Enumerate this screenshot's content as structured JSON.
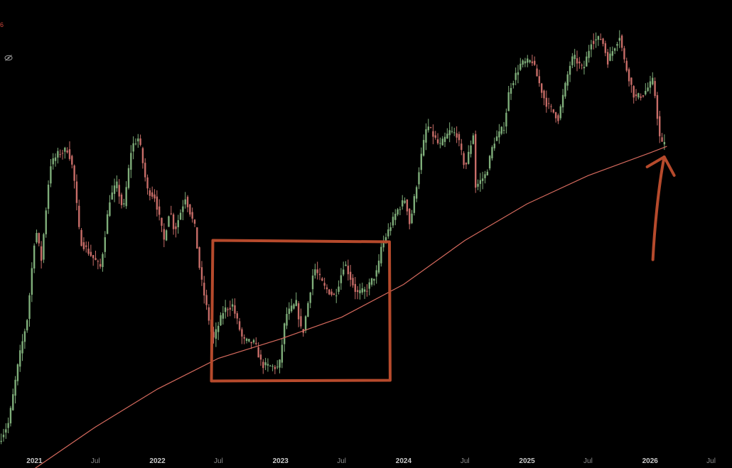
{
  "header": {
    "corner_value": "6"
  },
  "icons": {
    "visibility": "eye-slash-icon"
  },
  "colors": {
    "background": "#000000",
    "up_candle": "#7fae7a",
    "down_candle": "#c86d68",
    "moving_average": "#d66a5e",
    "annotation": "#b64a2c",
    "axis_text": "#8c8c8c"
  },
  "chart_data": {
    "type": "candlestick",
    "title": "",
    "xlabel": "",
    "ylabel": "",
    "interval": "weekly",
    "x_range": [
      "2020-09-21",
      "2026-09-01"
    ],
    "y_scale": "log",
    "grid": false,
    "x_ticks": [
      {
        "date": "2021-01-01",
        "label": "2021",
        "major": true
      },
      {
        "date": "2021-07-01",
        "label": "Jul",
        "major": false
      },
      {
        "date": "2022-01-01",
        "label": "2022",
        "major": true
      },
      {
        "date": "2022-07-01",
        "label": "Jul",
        "major": false
      },
      {
        "date": "2023-01-01",
        "label": "2023",
        "major": true
      },
      {
        "date": "2023-07-01",
        "label": "Jul",
        "major": false
      },
      {
        "date": "2024-01-01",
        "label": "2024",
        "major": true
      },
      {
        "date": "2024-07-01",
        "label": "Jul",
        "major": false
      },
      {
        "date": "2025-01-01",
        "label": "2025",
        "major": true
      },
      {
        "date": "2025-07-01",
        "label": "Jul",
        "major": false
      },
      {
        "date": "2026-01-01",
        "label": "2026",
        "major": true
      },
      {
        "date": "2026-07-01",
        "label": "Jul",
        "major": false
      }
    ],
    "price_path": [
      [
        "2020-09-21",
        10500
      ],
      [
        "2020-10-20",
        11800
      ],
      [
        "2020-11-20",
        17500
      ],
      [
        "2020-12-15",
        22500
      ],
      [
        "2021-01-08",
        39000
      ],
      [
        "2021-01-25",
        32000
      ],
      [
        "2021-02-20",
        57000
      ],
      [
        "2021-03-15",
        61000
      ],
      [
        "2021-04-14",
        63000
      ],
      [
        "2021-04-30",
        55000
      ],
      [
        "2021-05-20",
        36000
      ],
      [
        "2021-06-20",
        33000
      ],
      [
        "2021-07-20",
        30500
      ],
      [
        "2021-08-15",
        46000
      ],
      [
        "2021-09-05",
        51000
      ],
      [
        "2021-09-25",
        43000
      ],
      [
        "2021-10-20",
        64000
      ],
      [
        "2021-11-10",
        67500
      ],
      [
        "2021-12-05",
        49000
      ],
      [
        "2021-12-28",
        47000
      ],
      [
        "2022-01-24",
        36000
      ],
      [
        "2022-02-10",
        44000
      ],
      [
        "2022-02-24",
        38000
      ],
      [
        "2022-03-28",
        47000
      ],
      [
        "2022-04-25",
        39000
      ],
      [
        "2022-05-12",
        29000
      ],
      [
        "2022-06-18",
        19500
      ],
      [
        "2022-07-20",
        23500
      ],
      [
        "2022-08-15",
        24200
      ],
      [
        "2022-09-15",
        19500
      ],
      [
        "2022-10-20",
        19200
      ],
      [
        "2022-11-10",
        16800
      ],
      [
        "2022-12-31",
        16500
      ],
      [
        "2023-01-20",
        22800
      ],
      [
        "2023-02-20",
        24500
      ],
      [
        "2023-03-10",
        20000
      ],
      [
        "2023-04-14",
        30500
      ],
      [
        "2023-05-15",
        27000
      ],
      [
        "2023-06-15",
        25500
      ],
      [
        "2023-07-13",
        31500
      ],
      [
        "2023-08-18",
        26000
      ],
      [
        "2023-09-15",
        26500
      ],
      [
        "2023-10-20",
        30000
      ],
      [
        "2023-10-30",
        34500
      ],
      [
        "2023-12-15",
        43000
      ],
      [
        "2024-01-10",
        46500
      ],
      [
        "2024-01-23",
        39500
      ],
      [
        "2024-02-28",
        62000
      ],
      [
        "2024-03-14",
        73000
      ],
      [
        "2024-04-20",
        64000
      ],
      [
        "2024-05-20",
        70000
      ],
      [
        "2024-06-10",
        69000
      ],
      [
        "2024-07-05",
        56000
      ],
      [
        "2024-07-29",
        69000
      ],
      [
        "2024-08-05",
        50000
      ],
      [
        "2024-09-05",
        54000
      ],
      [
        "2024-09-27",
        65500
      ],
      [
        "2024-10-29",
        72500
      ],
      [
        "2024-11-13",
        91000
      ],
      [
        "2024-12-17",
        106000
      ],
      [
        "2025-01-20",
        108000
      ],
      [
        "2025-02-05",
        97000
      ],
      [
        "2025-02-28",
        84000
      ],
      [
        "2025-04-07",
        76000
      ],
      [
        "2025-05-10",
        104000
      ],
      [
        "2025-05-22",
        111000
      ],
      [
        "2025-06-20",
        102000
      ],
      [
        "2025-07-14",
        122000
      ],
      [
        "2025-08-14",
        124000
      ],
      [
        "2025-09-01",
        108000
      ],
      [
        "2025-10-06",
        126000
      ],
      [
        "2025-10-20",
        108000
      ],
      [
        "2025-11-20",
        86000
      ],
      [
        "2025-12-15",
        88000
      ],
      [
        "2026-01-14",
        96000
      ],
      [
        "2026-02-05",
        64000
      ],
      [
        "2026-02-20",
        67000
      ]
    ],
    "moving_average": {
      "label": "",
      "points": [
        [
          "2020-09-21",
          7800
        ],
        [
          "2021-01-01",
          8900
        ],
        [
          "2021-07-01",
          11500
        ],
        [
          "2022-01-01",
          14500
        ],
        [
          "2022-07-01",
          17500
        ],
        [
          "2023-01-01",
          19700
        ],
        [
          "2023-07-01",
          22500
        ],
        [
          "2024-01-01",
          27500
        ],
        [
          "2024-07-01",
          36000
        ],
        [
          "2025-01-01",
          45000
        ],
        [
          "2025-07-01",
          53500
        ],
        [
          "2026-01-01",
          61500
        ],
        [
          "2026-02-20",
          64000
        ]
      ]
    },
    "annotations": [
      {
        "type": "rectangle",
        "from": "2022-06-10",
        "to": "2023-11-20",
        "y_low": 15300,
        "y_high": 36000,
        "text": ""
      },
      {
        "type": "arrow",
        "date": "2026-02-12",
        "y_from": 32000,
        "y_to": 60000,
        "text": ""
      }
    ]
  }
}
